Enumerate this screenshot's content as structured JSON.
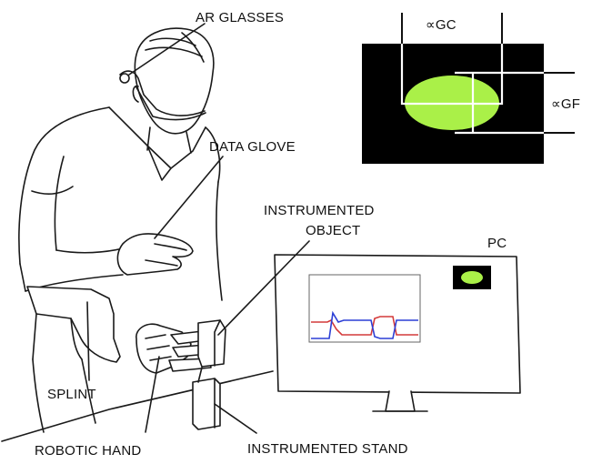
{
  "labels": {
    "ar_glasses": "AR GLASSES",
    "data_glove": "DATA GLOVE",
    "instrumented_object_1": "INSTRUMENTED",
    "instrumented_object_2": "OBJECT",
    "pc": "PC",
    "splint": "SPLINT",
    "robotic_hand": "ROBOTIC HAND",
    "instrumented_stand": "INSTRUMENTED STAND"
  },
  "ar_view": {
    "gc_label": "∝GC",
    "gf_label": "∝GF",
    "background_color": "#000000",
    "ellipse_color": "#aaf048"
  },
  "monitor": {
    "indicator_color": "#aaf048",
    "signal_colors": [
      "#d43a3a",
      "#2c3fd6"
    ]
  }
}
